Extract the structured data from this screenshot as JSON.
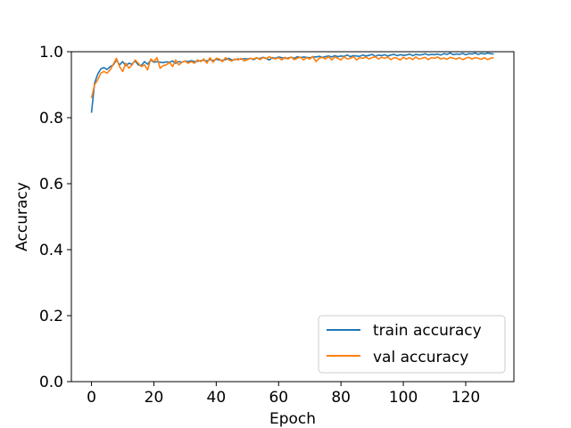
{
  "chart_data": {
    "type": "line",
    "title": "",
    "xlabel": "Epoch",
    "ylabel": "Accuracy",
    "xlim": [
      -6.45,
      135.45
    ],
    "ylim": [
      0.0,
      1.0
    ],
    "xticks": [
      0,
      20,
      40,
      60,
      80,
      100,
      120
    ],
    "xtick_labels": [
      "0",
      "20",
      "40",
      "60",
      "80",
      "100",
      "120"
    ],
    "yticks": [
      0.0,
      0.2,
      0.4,
      0.6,
      0.8,
      1.0
    ],
    "ytick_labels": [
      "0.0",
      "0.2",
      "0.4",
      "0.6",
      "0.8",
      "1.0"
    ],
    "grid": false,
    "legend_position": "lower-right",
    "series": [
      {
        "name": "train accuracy",
        "color": "#1f77b4",
        "values": [
          0.815,
          0.905,
          0.932,
          0.948,
          0.952,
          0.946,
          0.955,
          0.96,
          0.975,
          0.96,
          0.97,
          0.958,
          0.965,
          0.962,
          0.972,
          0.96,
          0.958,
          0.97,
          0.962,
          0.975,
          0.968,
          0.97,
          0.968,
          0.967,
          0.969,
          0.968,
          0.972,
          0.965,
          0.97,
          0.968,
          0.972,
          0.97,
          0.973,
          0.97,
          0.971,
          0.973,
          0.974,
          0.972,
          0.976,
          0.973,
          0.977,
          0.975,
          0.974,
          0.976,
          0.98,
          0.975,
          0.976,
          0.978,
          0.977,
          0.979,
          0.978,
          0.98,
          0.976,
          0.981,
          0.979,
          0.983,
          0.98,
          0.975,
          0.982,
          0.98,
          0.984,
          0.982,
          0.98,
          0.981,
          0.983,
          0.98,
          0.985,
          0.982,
          0.984,
          0.983,
          0.981,
          0.985,
          0.984,
          0.986,
          0.983,
          0.985,
          0.987,
          0.984,
          0.988,
          0.985,
          0.987,
          0.986,
          0.99,
          0.985,
          0.988,
          0.987,
          0.986,
          0.99,
          0.987,
          0.989,
          0.992,
          0.986,
          0.99,
          0.988,
          0.991,
          0.987,
          0.99,
          0.992,
          0.988,
          0.991,
          0.989,
          0.99,
          0.993,
          0.988,
          0.992,
          0.99,
          0.991,
          0.994,
          0.99,
          0.992,
          0.991,
          0.993,
          0.99,
          0.994,
          0.992,
          0.996,
          0.991,
          0.993,
          0.992,
          0.995,
          0.991,
          0.994,
          0.993,
          0.996,
          0.992,
          0.995,
          0.993,
          0.996,
          0.994,
          0.993
        ]
      },
      {
        "name": "val accuracy",
        "color": "#ff7f0e",
        "values": [
          0.86,
          0.9,
          0.915,
          0.935,
          0.94,
          0.935,
          0.945,
          0.962,
          0.98,
          0.955,
          0.94,
          0.965,
          0.95,
          0.96,
          0.975,
          0.965,
          0.955,
          0.96,
          0.945,
          0.978,
          0.97,
          0.982,
          0.95,
          0.958,
          0.96,
          0.968,
          0.955,
          0.975,
          0.96,
          0.968,
          0.972,
          0.965,
          0.97,
          0.965,
          0.975,
          0.97,
          0.978,
          0.965,
          0.982,
          0.968,
          0.98,
          0.978,
          0.97,
          0.982,
          0.975,
          0.972,
          0.978,
          0.975,
          0.98,
          0.972,
          0.976,
          0.98,
          0.978,
          0.982,
          0.976,
          0.982,
          0.979,
          0.985,
          0.98,
          0.978,
          0.982,
          0.975,
          0.983,
          0.978,
          0.984,
          0.976,
          0.98,
          0.984,
          0.975,
          0.982,
          0.978,
          0.985,
          0.97,
          0.98,
          0.983,
          0.978,
          0.985,
          0.975,
          0.984,
          0.98,
          0.975,
          0.985,
          0.978,
          0.98,
          0.985,
          0.975,
          0.982,
          0.98,
          0.984,
          0.978,
          0.982,
          0.985,
          0.978,
          0.983,
          0.98,
          0.984,
          0.976,
          0.982,
          0.98,
          0.975,
          0.983,
          0.978,
          0.982,
          0.976,
          0.984,
          0.978,
          0.98,
          0.983,
          0.976,
          0.982,
          0.98,
          0.984,
          0.978,
          0.981,
          0.977,
          0.983,
          0.98,
          0.978,
          0.982,
          0.976,
          0.98,
          0.983,
          0.978,
          0.982,
          0.98,
          0.977,
          0.982,
          0.976,
          0.98,
          0.982
        ]
      }
    ]
  }
}
